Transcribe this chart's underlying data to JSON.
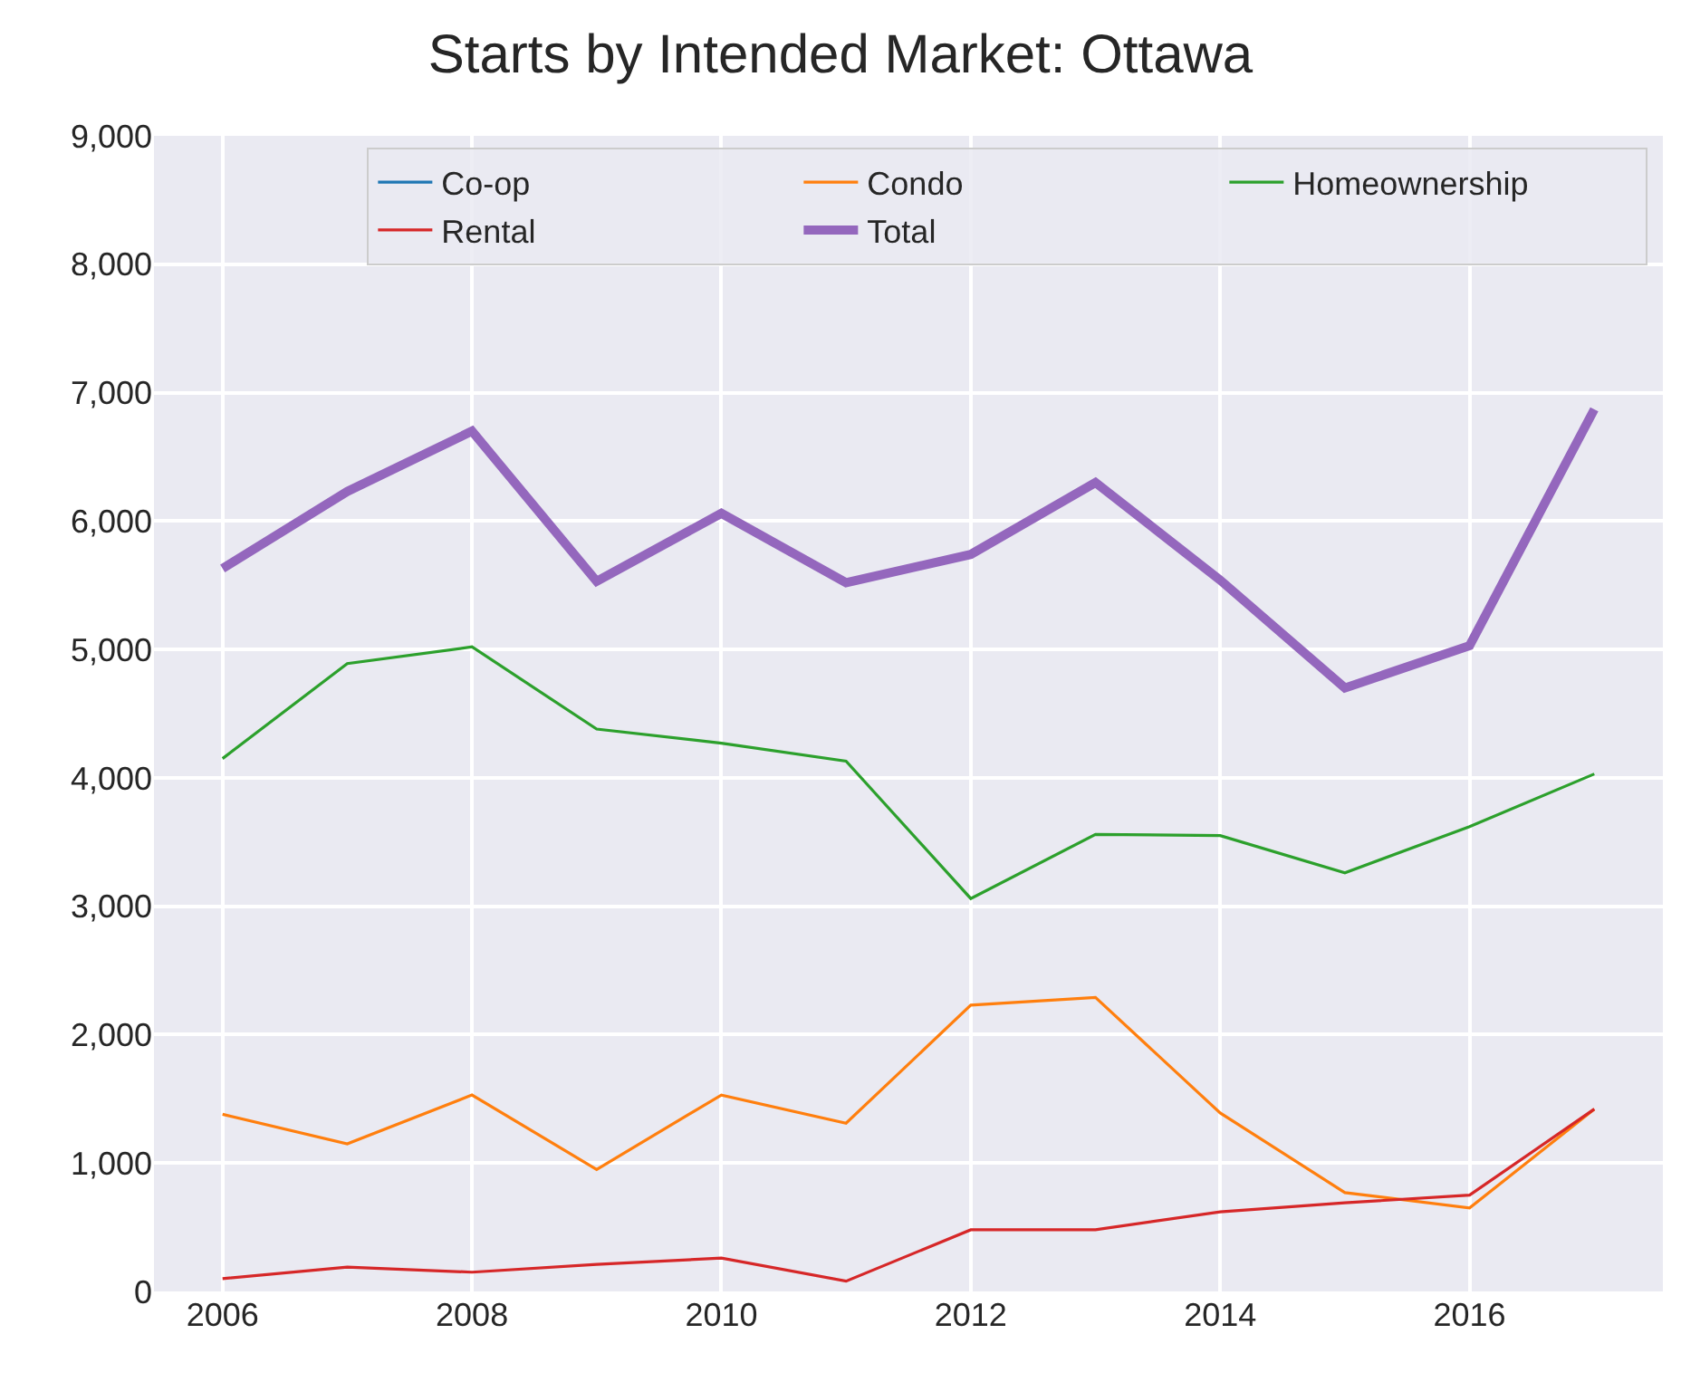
{
  "chart_data": {
    "type": "line",
    "title": "Starts by Intended Market: Ottawa",
    "x": [
      2006,
      2007,
      2008,
      2009,
      2010,
      2011,
      2012,
      2013,
      2014,
      2015,
      2016,
      2017
    ],
    "series": [
      {
        "name": "Co-op",
        "color": "#1f77b4",
        "values": [
          null,
          null,
          null,
          null,
          null,
          null,
          null,
          null,
          null,
          null,
          null,
          null
        ]
      },
      {
        "name": "Condo",
        "color": "#ff7f0e",
        "values": [
          1380,
          1150,
          1530,
          950,
          1530,
          1310,
          2230,
          2290,
          1390,
          770,
          650,
          1420
        ]
      },
      {
        "name": "Homeownership",
        "color": "#2ca02c",
        "values": [
          4150,
          4890,
          5020,
          4380,
          4270,
          4130,
          3060,
          3560,
          3550,
          3260,
          3620,
          4030
        ]
      },
      {
        "name": "Rental",
        "color": "#d62728",
        "values": [
          100,
          190,
          150,
          210,
          260,
          80,
          480,
          480,
          620,
          690,
          750,
          1420
        ]
      },
      {
        "name": "Total",
        "color": "#9467bd",
        "values": [
          5630,
          6230,
          6700,
          5530,
          6060,
          5520,
          5740,
          6300,
          5540,
          4700,
          5030,
          6870
        ]
      }
    ],
    "xlim": [
      2005.45,
      2017.55
    ],
    "xticks": [
      2006,
      2008,
      2010,
      2012,
      2014,
      2016
    ],
    "ylim": [
      0,
      9000
    ],
    "yticks": [
      {
        "value": 0,
        "label": "0"
      },
      {
        "value": 1000,
        "label": "1,000"
      },
      {
        "value": 2000,
        "label": "2,000"
      },
      {
        "value": 3000,
        "label": "3,000"
      },
      {
        "value": 4000,
        "label": "4,000"
      },
      {
        "value": 5000,
        "label": "5,000"
      },
      {
        "value": 6000,
        "label": "6,000"
      },
      {
        "value": 7000,
        "label": "7,000"
      },
      {
        "value": 8000,
        "label": "8,000"
      },
      {
        "value": 9000,
        "label": "9,000"
      }
    ],
    "grid": true,
    "legend": "top right",
    "line_style": "solid",
    "marker": "none"
  }
}
